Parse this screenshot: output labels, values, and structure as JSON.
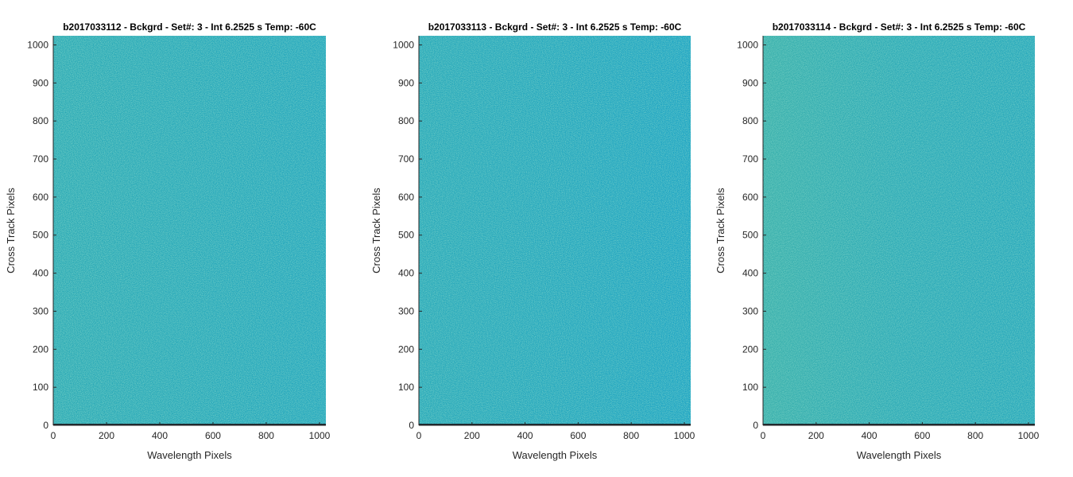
{
  "figure": {
    "background": "#ffffff"
  },
  "chart_data": [
    {
      "type": "heatmap",
      "title": "b2017033112 - Bckgrd - Set#: 3 - Int 6.2525 s Temp: -60C",
      "xlabel": "Wavelength Pixels",
      "ylabel": "Cross Track Pixels",
      "xlim": [
        0,
        1024
      ],
      "ylim": [
        0,
        1024
      ],
      "xticks": [
        0,
        200,
        400,
        600,
        800,
        1000
      ],
      "yticks": [
        0,
        100,
        200,
        300,
        400,
        500,
        600,
        700,
        800,
        900,
        1000
      ],
      "grid": false,
      "colors": {
        "low": "#15a0c8",
        "mid": "#1aa9bd",
        "high": "#44b49e",
        "dark": "#1f2a30"
      },
      "gradient": [
        0.45,
        0.4,
        0.35,
        0.3,
        0.25
      ]
    },
    {
      "type": "heatmap",
      "title": "b2017033113 - Bckgrd - Set#: 3 - Int 6.2525 s Temp: -60C",
      "xlabel": "Wavelength Pixels",
      "ylabel": "Cross Track Pixels",
      "xlim": [
        0,
        1024
      ],
      "ylim": [
        0,
        1024
      ],
      "xticks": [
        0,
        200,
        400,
        600,
        800,
        1000
      ],
      "yticks": [
        0,
        100,
        200,
        300,
        400,
        500,
        600,
        700,
        800,
        900,
        1000
      ],
      "grid": false,
      "colors": {
        "low": "#15a0c8",
        "mid": "#1aa9bd",
        "high": "#44b49e",
        "dark": "#1f2a30"
      },
      "gradient": [
        0.35,
        0.3,
        0.25,
        0.18,
        0.1
      ]
    },
    {
      "type": "heatmap",
      "title": "b2017033114 - Bckgrd - Set#: 3 - Int 6.2525 s Temp: -60C",
      "xlabel": "Wavelength Pixels",
      "ylabel": "Cross Track Pixels",
      "xlim": [
        0,
        1024
      ],
      "ylim": [
        0,
        1024
      ],
      "xticks": [
        0,
        200,
        400,
        600,
        800,
        1000
      ],
      "yticks": [
        0,
        100,
        200,
        300,
        400,
        500,
        600,
        700,
        800,
        900,
        1000
      ],
      "grid": false,
      "colors": {
        "low": "#15a0c8",
        "mid": "#1aa9bd",
        "high": "#44b49e",
        "dark": "#1f2a30"
      },
      "gradient": [
        0.7,
        0.55,
        0.42,
        0.35,
        0.3
      ]
    }
  ]
}
